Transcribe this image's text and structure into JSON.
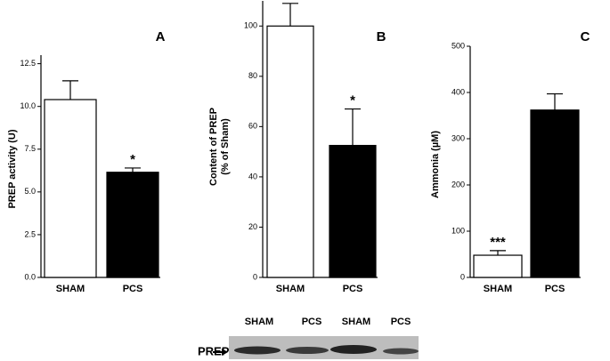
{
  "chart_data": [
    {
      "type": "bar",
      "title": "A",
      "ylabel": "PREP activity (U)",
      "categories": [
        "SHAM",
        "PCS"
      ],
      "values": [
        10.4,
        6.15
      ],
      "errors": [
        1.1,
        0.25
      ],
      "colors": [
        "#ffffff",
        "#000000"
      ],
      "annotation": "*",
      "ylim": [
        0,
        13
      ],
      "yticks": [
        {
          "value": 0,
          "label": "0.0"
        },
        {
          "value": 2.5,
          "label": "2.5"
        },
        {
          "value": 5,
          "label": "5.0"
        },
        {
          "value": 7.5,
          "label": "7.5"
        },
        {
          "value": 10,
          "label": "10.0"
        },
        {
          "value": 12.5,
          "label": "12.5"
        }
      ]
    },
    {
      "type": "bar",
      "title": "B",
      "ylabel": [
        "Content of PREP",
        "(% of Sham)"
      ],
      "categories": [
        "SHAM",
        "PCS"
      ],
      "values": [
        100,
        52.5
      ],
      "errors": [
        9,
        14.5
      ],
      "colors": [
        "#ffffff",
        "#000000"
      ],
      "annotation": "*",
      "ylim": [
        0,
        110
      ],
      "yticks": [
        0,
        20,
        40,
        60,
        80,
        100
      ]
    },
    {
      "type": "bar",
      "title": "C",
      "ylabel": "Ammonia  (µM)",
      "categories": [
        "SHAM",
        "PCS"
      ],
      "values": [
        48,
        362
      ],
      "errors": [
        10,
        35
      ],
      "colors": [
        "#ffffff",
        "#000000"
      ],
      "annotation": "***",
      "ylim": [
        0,
        500
      ],
      "yticks": [
        0,
        100,
        200,
        300,
        400,
        500
      ]
    }
  ],
  "blot": {
    "lanes": [
      "SHAM",
      "PCS",
      "SHAM",
      "PCS"
    ],
    "label": "PREP"
  }
}
